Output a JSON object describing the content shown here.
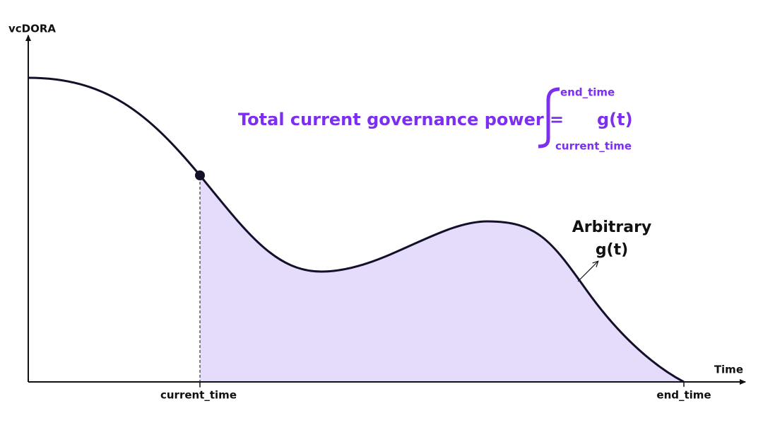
{
  "axes": {
    "y_label": "vcDORA",
    "x_label": "Time"
  },
  "markers": {
    "start": "current_time",
    "end": "end_time"
  },
  "formula": {
    "lhs": "Total current governance power =",
    "upper": "end_time",
    "lower": "current_time",
    "integrand": "g(t)"
  },
  "curve_label": {
    "line1": "Arbitrary",
    "line2": "g(t)"
  }
}
